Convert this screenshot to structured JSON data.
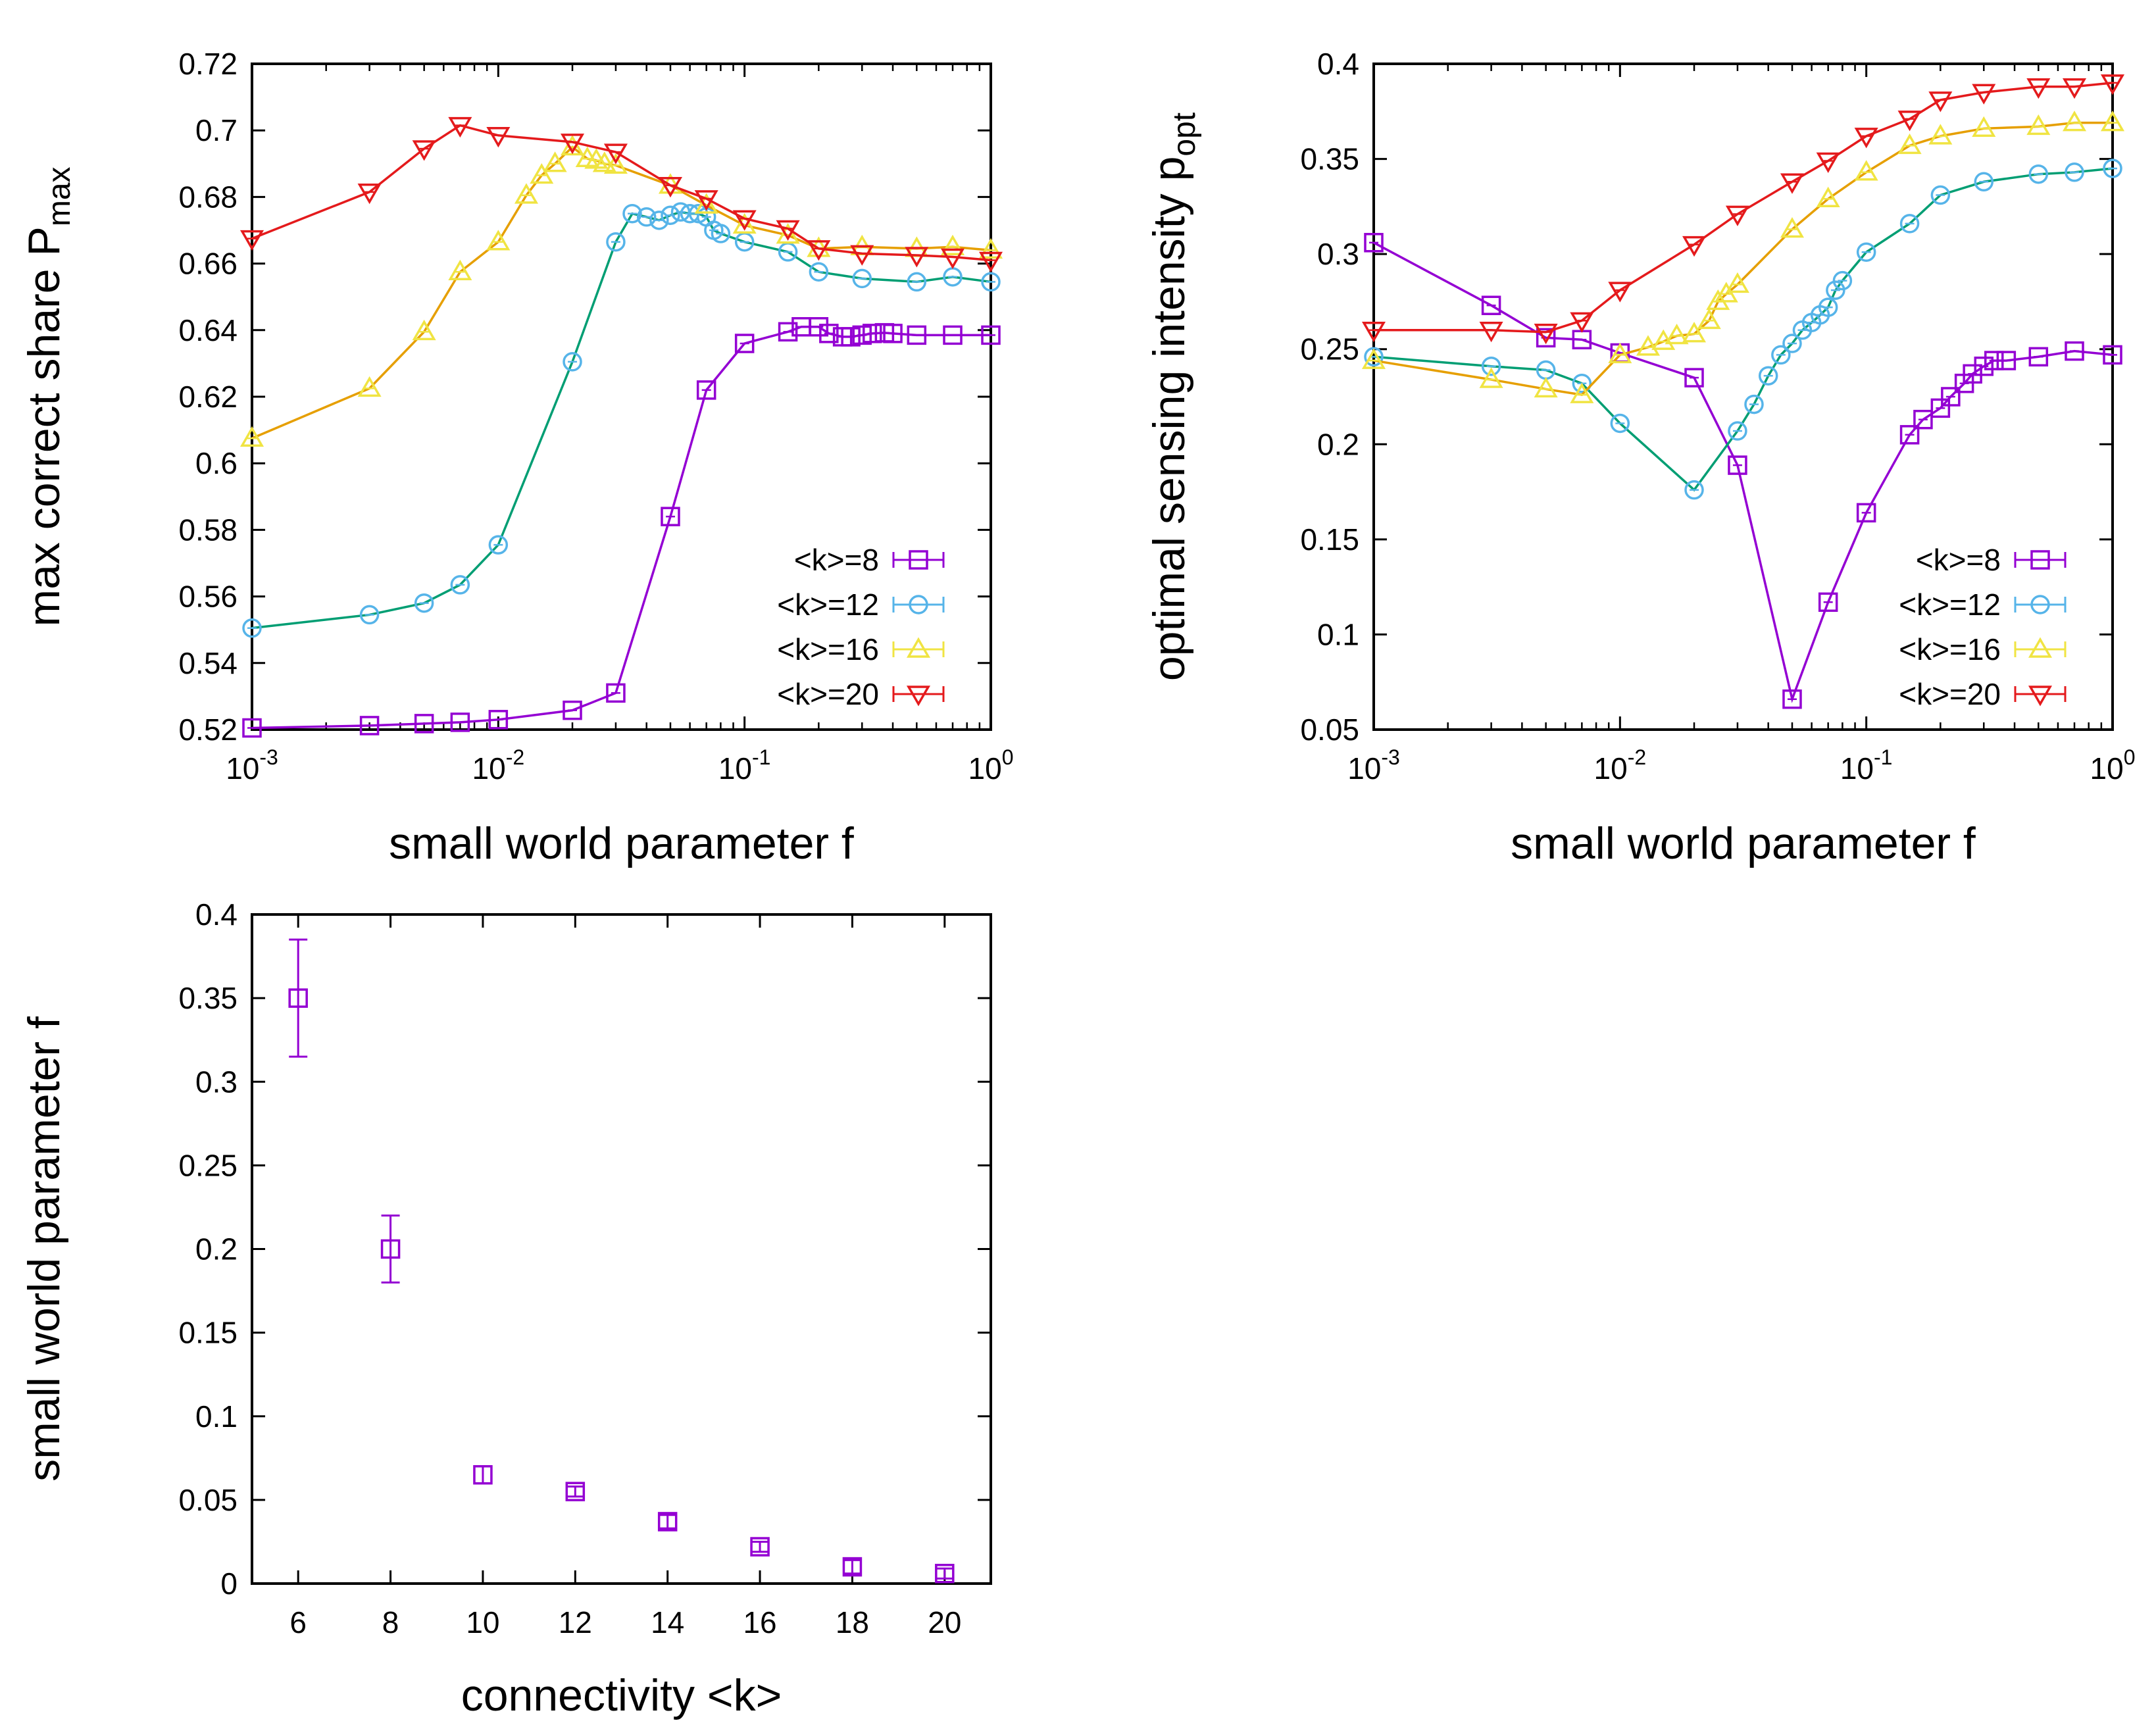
{
  "chart_data": [
    {
      "id": "panel-a",
      "type": "line",
      "xscale": "log",
      "xlim": [
        0.001,
        1
      ],
      "ylim": [
        0.52,
        0.72
      ],
      "xlabel": "small world parameter f",
      "ylabel_main": "max correct share P",
      "ylabel_sub": "max",
      "xticks": [
        {
          "base": "10",
          "exp": "-3",
          "value": 0.001
        },
        {
          "base": "10",
          "exp": "-2",
          "value": 0.01
        },
        {
          "base": "10",
          "exp": "-1",
          "value": 0.1
        },
        {
          "base": "10",
          "exp": "0",
          "value": 1
        }
      ],
      "yticks": [
        "0.52",
        "0.54",
        "0.56",
        "0.58",
        "0.6",
        "0.62",
        "0.64",
        "0.66",
        "0.68",
        "0.7",
        "0.72"
      ],
      "legend_position": "bottom-right",
      "series": [
        {
          "name": "<k>=8",
          "marker": "square",
          "line_color": "#9400d3",
          "marker_color": "#9400d3",
          "x": [
            0.001,
            0.003,
            0.005,
            0.007,
            0.01,
            0.02,
            0.03,
            0.05,
            0.07,
            0.1,
            0.15,
            0.17,
            0.2,
            0.22,
            0.25,
            0.27,
            0.3,
            0.33,
            0.37,
            0.4,
            0.5,
            0.7,
            1.0
          ],
          "y": [
            0.5205,
            0.5212,
            0.5218,
            0.5222,
            0.523,
            0.5258,
            0.531,
            0.584,
            0.622,
            0.636,
            0.6395,
            0.641,
            0.641,
            0.639,
            0.638,
            0.638,
            0.6385,
            0.639,
            0.6392,
            0.639,
            0.6385,
            0.6385,
            0.6385
          ]
        },
        {
          "name": "<k>=12",
          "marker": "circle",
          "line_color": "#009e73",
          "marker_color": "#56b4e9",
          "x": [
            0.001,
            0.003,
            0.005,
            0.007,
            0.01,
            0.02,
            0.03,
            0.035,
            0.04,
            0.045,
            0.05,
            0.055,
            0.06,
            0.065,
            0.07,
            0.075,
            0.08,
            0.1,
            0.15,
            0.2,
            0.3,
            0.5,
            0.7,
            1.0
          ],
          "y": [
            0.5505,
            0.5545,
            0.558,
            0.5635,
            0.5755,
            0.6305,
            0.6665,
            0.675,
            0.674,
            0.673,
            0.6745,
            0.6755,
            0.675,
            0.675,
            0.674,
            0.67,
            0.669,
            0.6665,
            0.6635,
            0.6575,
            0.6555,
            0.6545,
            0.656,
            0.6545
          ]
        },
        {
          "name": "<k>=16",
          "marker": "triangle-up",
          "line_color": "#e69f00",
          "marker_color": "#f0e442",
          "x": [
            0.001,
            0.003,
            0.005,
            0.007,
            0.01,
            0.013,
            0.015,
            0.017,
            0.02,
            0.023,
            0.025,
            0.027,
            0.03,
            0.05,
            0.07,
            0.1,
            0.15,
            0.2,
            0.3,
            0.5,
            0.7,
            1.0
          ],
          "y": [
            0.6075,
            0.6225,
            0.6395,
            0.6575,
            0.6665,
            0.6805,
            0.6865,
            0.69,
            0.695,
            0.6915,
            0.691,
            0.69,
            0.6895,
            0.6835,
            0.6775,
            0.6715,
            0.6685,
            0.6645,
            0.665,
            0.6645,
            0.665,
            0.664
          ]
        },
        {
          "name": "<k>=20",
          "marker": "triangle-down",
          "line_color": "#e41a1c",
          "marker_color": "#e41a1c",
          "x": [
            0.001,
            0.003,
            0.005,
            0.007,
            0.01,
            0.02,
            0.03,
            0.05,
            0.07,
            0.1,
            0.15,
            0.2,
            0.3,
            0.5,
            0.7,
            1.0
          ],
          "y": [
            0.6675,
            0.6815,
            0.6945,
            0.7015,
            0.6985,
            0.6965,
            0.6935,
            0.6835,
            0.6795,
            0.6735,
            0.6705,
            0.6645,
            0.663,
            0.6625,
            0.662,
            0.661
          ]
        }
      ]
    },
    {
      "id": "panel-b",
      "type": "line",
      "xscale": "log",
      "xlim": [
        0.001,
        1
      ],
      "ylim": [
        0.05,
        0.4
      ],
      "xlabel": "small world parameter f",
      "ylabel_main": "optimal sensing intensity p",
      "ylabel_sub": "opt",
      "xticks": [
        {
          "base": "10",
          "exp": "-3",
          "value": 0.001
        },
        {
          "base": "10",
          "exp": "-2",
          "value": 0.01
        },
        {
          "base": "10",
          "exp": "-1",
          "value": 0.1
        },
        {
          "base": "10",
          "exp": "0",
          "value": 1
        }
      ],
      "yticks": [
        "0.05",
        "0.1",
        "0.15",
        "0.2",
        "0.25",
        "0.3",
        "0.35",
        "0.4"
      ],
      "legend_position": "bottom-right",
      "series": [
        {
          "name": "<k>=8",
          "marker": "square",
          "line_color": "#9400d3",
          "marker_color": "#9400d3",
          "x": [
            0.001,
            0.003,
            0.005,
            0.007,
            0.01,
            0.02,
            0.03,
            0.05,
            0.07,
            0.1,
            0.15,
            0.17,
            0.2,
            0.22,
            0.25,
            0.27,
            0.3,
            0.33,
            0.37,
            0.5,
            0.7,
            1.0
          ],
          "y": [
            0.306,
            0.273,
            0.256,
            0.255,
            0.248,
            0.235,
            0.189,
            0.066,
            0.117,
            0.164,
            0.205,
            0.213,
            0.219,
            0.225,
            0.232,
            0.237,
            0.241,
            0.244,
            0.244,
            0.246,
            0.249,
            0.247
          ]
        },
        {
          "name": "<k>=12",
          "marker": "circle",
          "line_color": "#009e73",
          "marker_color": "#56b4e9",
          "x": [
            0.001,
            0.003,
            0.005,
            0.007,
            0.01,
            0.02,
            0.03,
            0.035,
            0.04,
            0.045,
            0.05,
            0.055,
            0.06,
            0.065,
            0.07,
            0.075,
            0.08,
            0.1,
            0.15,
            0.2,
            0.3,
            0.5,
            0.7,
            1.0
          ],
          "y": [
            0.246,
            0.241,
            0.239,
            0.232,
            0.211,
            0.176,
            0.207,
            0.221,
            0.236,
            0.247,
            0.253,
            0.26,
            0.264,
            0.268,
            0.272,
            0.281,
            0.286,
            0.301,
            0.316,
            0.331,
            0.338,
            0.342,
            0.343,
            0.345
          ]
        },
        {
          "name": "<k>=16",
          "marker": "triangle-up",
          "line_color": "#e69f00",
          "marker_color": "#f0e442",
          "x": [
            0.001,
            0.003,
            0.005,
            0.007,
            0.01,
            0.013,
            0.015,
            0.017,
            0.02,
            0.023,
            0.025,
            0.027,
            0.03,
            0.05,
            0.07,
            0.1,
            0.15,
            0.2,
            0.3,
            0.5,
            0.7,
            1.0
          ],
          "y": [
            0.244,
            0.234,
            0.229,
            0.226,
            0.247,
            0.251,
            0.254,
            0.257,
            0.258,
            0.265,
            0.275,
            0.279,
            0.284,
            0.313,
            0.329,
            0.343,
            0.357,
            0.362,
            0.366,
            0.367,
            0.369,
            0.369
          ]
        },
        {
          "name": "<k>=20",
          "marker": "triangle-down",
          "line_color": "#e41a1c",
          "marker_color": "#e41a1c",
          "x": [
            0.001,
            0.003,
            0.005,
            0.007,
            0.01,
            0.02,
            0.03,
            0.05,
            0.07,
            0.1,
            0.15,
            0.2,
            0.3,
            0.5,
            0.7,
            1.0
          ],
          "y": [
            0.26,
            0.26,
            0.259,
            0.265,
            0.281,
            0.305,
            0.321,
            0.338,
            0.349,
            0.362,
            0.371,
            0.381,
            0.385,
            0.388,
            0.388,
            0.39
          ]
        }
      ]
    },
    {
      "id": "panel-c",
      "type": "scatter",
      "xscale": "linear",
      "xlim": [
        5,
        21
      ],
      "ylim": [
        0,
        0.4
      ],
      "xlabel": "connectivity <k>",
      "ylabel_main": "small world parameter f",
      "ylabel_sub": "",
      "xticks": [
        {
          "base": "6",
          "exp": "",
          "value": 6
        },
        {
          "base": "8",
          "exp": "",
          "value": 8
        },
        {
          "base": "10",
          "exp": "",
          "value": 10
        },
        {
          "base": "12",
          "exp": "",
          "value": 12
        },
        {
          "base": "14",
          "exp": "",
          "value": 14
        },
        {
          "base": "16",
          "exp": "",
          "value": 16
        },
        {
          "base": "18",
          "exp": "",
          "value": 18
        },
        {
          "base": "20",
          "exp": "",
          "value": 20
        }
      ],
      "yticks": [
        "0",
        "0.05",
        "0.1",
        "0.15",
        "0.2",
        "0.25",
        "0.3",
        "0.35",
        "0.4"
      ],
      "legend_position": "none",
      "series": [
        {
          "name": "",
          "marker": "square",
          "line_color": "none",
          "marker_color": "#9400d3",
          "x": [
            6,
            8,
            10,
            12,
            14,
            16,
            18,
            20
          ],
          "y": [
            0.35,
            0.2,
            0.065,
            0.055,
            0.037,
            0.022,
            0.01,
            0.006
          ],
          "err": [
            0.035,
            0.02,
            0.005,
            0.003,
            0.004,
            0.003,
            0.004,
            0.003
          ]
        }
      ]
    }
  ]
}
